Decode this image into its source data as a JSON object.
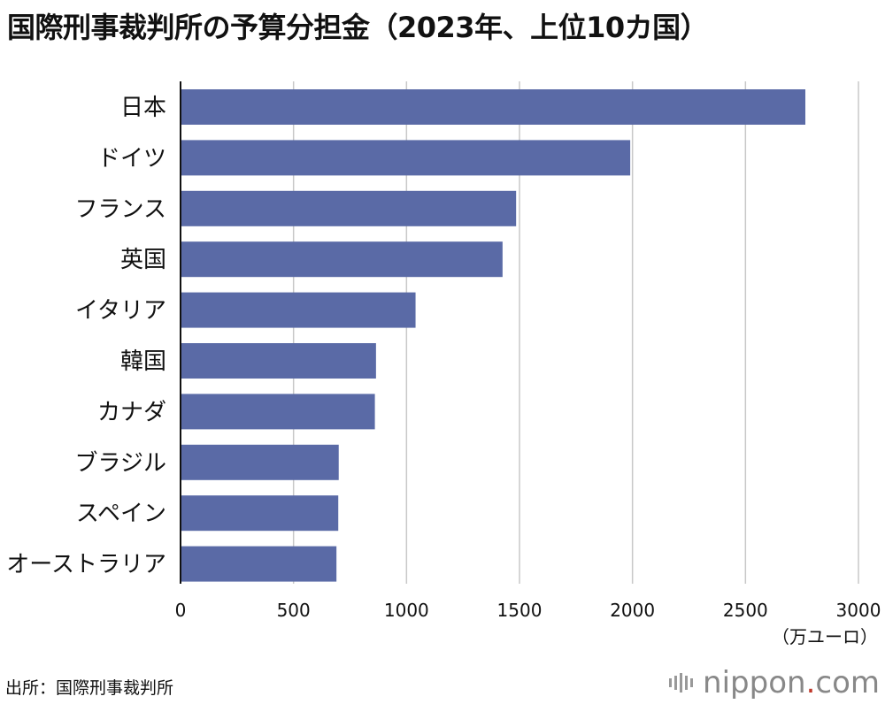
{
  "chart_data": {
    "type": "bar",
    "orientation": "horizontal",
    "title": "国際刑事裁判所の予算分担金（2023年、上位10カ国）",
    "categories": [
      "日本",
      "ドイツ",
      "フランス",
      "英国",
      "イタリア",
      "韓国",
      "カナダ",
      "ブラジル",
      "スペイン",
      "オーストラリア"
    ],
    "values": [
      2765,
      1990,
      1485,
      1425,
      1040,
      865,
      860,
      700,
      698,
      690
    ],
    "xlim": [
      0,
      3000
    ],
    "xticks": [
      0,
      500,
      1000,
      1500,
      2000,
      2500,
      3000
    ],
    "xlabel": "（万ユーロ）",
    "grid": true,
    "bar_color": "#5a6aa6"
  },
  "source_label": "出所：国際刑事裁判所",
  "brand": {
    "name": "nippon",
    "dot": ".",
    "suffix": "com"
  }
}
